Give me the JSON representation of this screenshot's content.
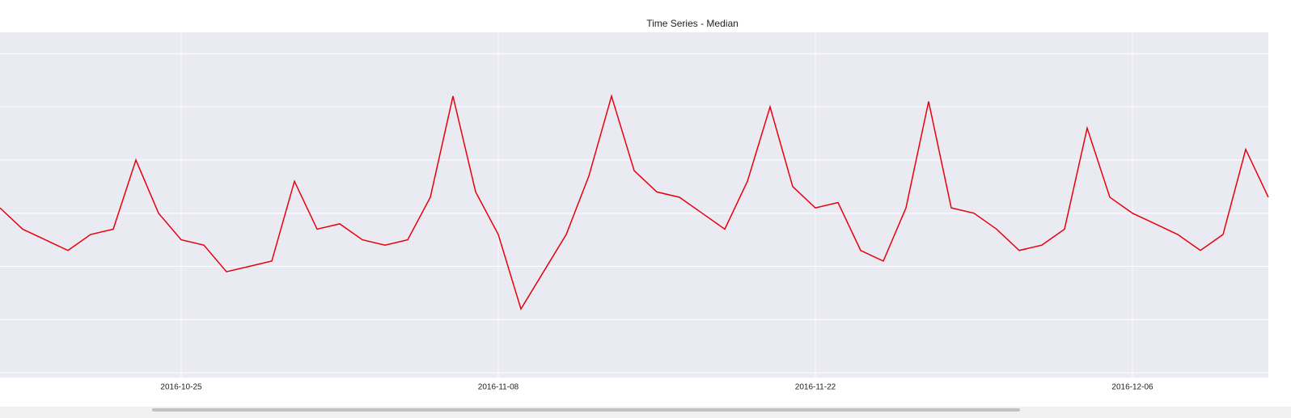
{
  "chart_data": {
    "type": "line",
    "title": "Time Series - Median",
    "x": [
      "2016-10-17",
      "2016-10-18",
      "2016-10-19",
      "2016-10-20",
      "2016-10-21",
      "2016-10-22",
      "2016-10-23",
      "2016-10-24",
      "2016-10-25",
      "2016-10-26",
      "2016-10-27",
      "2016-10-28",
      "2016-10-29",
      "2016-10-30",
      "2016-10-31",
      "2016-11-01",
      "2016-11-02",
      "2016-11-03",
      "2016-11-04",
      "2016-11-05",
      "2016-11-06",
      "2016-11-07",
      "2016-11-08",
      "2016-11-09",
      "2016-11-10",
      "2016-11-11",
      "2016-11-12",
      "2016-11-13",
      "2016-11-14",
      "2016-11-15",
      "2016-11-16",
      "2016-11-17",
      "2016-11-18",
      "2016-11-19",
      "2016-11-20",
      "2016-11-21",
      "2016-11-22",
      "2016-11-23",
      "2016-11-24",
      "2016-11-25",
      "2016-11-26",
      "2016-11-27",
      "2016-11-28",
      "2016-11-29",
      "2016-11-30",
      "2016-12-01",
      "2016-12-02",
      "2016-12-03",
      "2016-12-04",
      "2016-12-05",
      "2016-12-06",
      "2016-12-07",
      "2016-12-08",
      "2016-12-09",
      "2016-12-10",
      "2016-12-11",
      "2016-12-12"
    ],
    "series": [
      {
        "color": "#e8000b",
        "values": [
          3.1,
          2.7,
          2.5,
          2.3,
          2.6,
          2.7,
          4.0,
          3.0,
          2.5,
          2.4,
          1.9,
          2.0,
          2.1,
          3.6,
          2.7,
          2.8,
          2.5,
          2.4,
          2.5,
          3.3,
          5.2,
          3.4,
          2.6,
          1.2,
          1.9,
          2.6,
          3.7,
          5.2,
          3.8,
          3.4,
          3.3,
          3.0,
          2.7,
          3.6,
          5.0,
          3.5,
          3.1,
          3.2,
          2.3,
          2.1,
          3.1,
          5.1,
          3.1,
          3.0,
          2.7,
          2.3,
          2.4,
          2.7,
          4.6,
          3.3,
          3.0,
          2.8,
          2.6,
          2.3,
          2.6,
          4.2,
          3.3
        ]
      }
    ],
    "xlim": [
      "2016-10-17",
      "2016-12-12"
    ],
    "xticks": [
      "2016-10-25",
      "2016-11-08",
      "2016-11-22",
      "2016-12-06"
    ],
    "ylim": [
      -0.09,
      6.4
    ],
    "yticks": [
      0,
      1,
      2,
      3,
      4,
      5,
      6
    ],
    "grid": true
  }
}
